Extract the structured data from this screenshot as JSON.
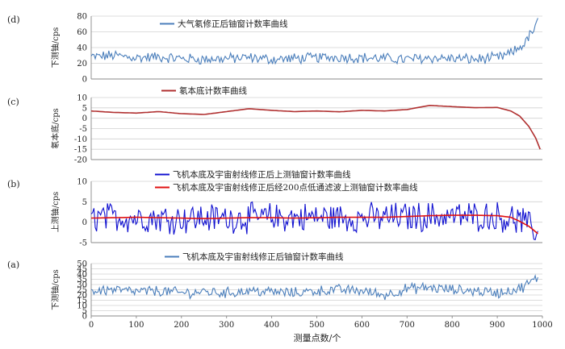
{
  "chart_data": [
    {
      "id": "d",
      "type": "line",
      "panel_label": "(d)",
      "ylabel": "下测铀/cps",
      "ylim": [
        0,
        80
      ],
      "yticks": [
        "0",
        "20",
        "40",
        "60",
        "80"
      ],
      "xlim": [
        0,
        1000
      ],
      "grid": true,
      "legend_position": "top-center",
      "series": [
        {
          "name": "大气氡修正后铀窗计数率曲线",
          "color": "#4a7ebb",
          "x": [
            0,
            50,
            100,
            150,
            200,
            250,
            300,
            350,
            400,
            450,
            500,
            550,
            600,
            650,
            700,
            750,
            800,
            850,
            900,
            920,
            940,
            960,
            980,
            990
          ],
          "values": [
            28,
            30,
            27,
            28,
            26,
            25,
            26,
            27,
            25,
            26,
            27,
            28,
            27,
            26,
            25,
            27,
            26,
            25,
            27,
            30,
            36,
            45,
            62,
            72
          ]
        }
      ]
    },
    {
      "id": "c",
      "type": "line",
      "panel_label": "(c)",
      "ylabel": "氡本底/cps",
      "ylim": [
        -20,
        10
      ],
      "yticks": [
        "-20",
        "-15",
        "-10",
        "-5",
        "0",
        "5",
        "10"
      ],
      "xlim": [
        0,
        1000
      ],
      "grid": true,
      "legend_position": "top-center",
      "series": [
        {
          "name": "氡本底计数率曲线",
          "color": "#b03030",
          "x": [
            0,
            50,
            100,
            150,
            200,
            250,
            300,
            350,
            400,
            450,
            500,
            550,
            600,
            650,
            700,
            750,
            800,
            850,
            900,
            930,
            950,
            970,
            985,
            995
          ],
          "values": [
            3.5,
            2.8,
            2.5,
            3.2,
            2.2,
            1.8,
            3.2,
            4.6,
            3.8,
            3.2,
            3.5,
            3.1,
            3.8,
            3.5,
            4.2,
            6.2,
            5.6,
            5.1,
            5.2,
            3.5,
            1,
            -4,
            -9.5,
            -15
          ]
        }
      ]
    },
    {
      "id": "b",
      "type": "line",
      "panel_label": "(b)",
      "ylabel": "上测铀/cps",
      "ylim": [
        -5,
        10
      ],
      "yticks": [
        "-5",
        "0",
        "5",
        "10"
      ],
      "xlim": [
        0,
        1000
      ],
      "grid": true,
      "legend_position": "top-center",
      "series": [
        {
          "name": "飞机本底及宇宙射线修正后上测铀窗计数率曲线",
          "color": "#1010d0",
          "x": [
            0,
            100,
            200,
            300,
            400,
            500,
            600,
            700,
            800,
            900,
            950,
            990
          ],
          "values": [
            1.2,
            1.1,
            0.9,
            1.0,
            1.1,
            1.2,
            1.0,
            1.3,
            1.5,
            1.4,
            0.5,
            -2.5
          ]
        },
        {
          "name": "飞机本底及宇宙射线修正后经200点低通滤波上测铀窗计数率曲线",
          "color": "#e01010",
          "x": [
            0,
            50,
            100,
            150,
            200,
            250,
            300,
            350,
            400,
            450,
            500,
            550,
            600,
            650,
            700,
            750,
            800,
            850,
            900,
            930,
            950,
            970,
            990
          ],
          "values": [
            1.0,
            1.1,
            1.2,
            1.1,
            1.0,
            0.9,
            1.0,
            1.1,
            1.1,
            1.0,
            1.1,
            1.2,
            1.2,
            1.2,
            1.4,
            1.6,
            1.7,
            1.7,
            1.6,
            1.2,
            0.2,
            -1.0,
            -2.8
          ]
        }
      ]
    },
    {
      "id": "a",
      "type": "line",
      "panel_label": "(a)",
      "ylabel": "下测铀/cps",
      "ylim": [
        0,
        50
      ],
      "yticks": [
        "0",
        "5",
        "10",
        "15",
        "20",
        "25",
        "30",
        "35",
        "40",
        "45",
        "50"
      ],
      "xlim": [
        0,
        1000
      ],
      "xticks": [
        "0",
        "100",
        "200",
        "300",
        "400",
        "500",
        "600",
        "700",
        "800",
        "900",
        "1000"
      ],
      "xlabel": "测量点数/个",
      "grid": true,
      "legend_position": "top-center",
      "series": [
        {
          "name": "飞机本底及宇宙射线修正后铀窗计数率曲线",
          "color": "#4a7ebb",
          "x": [
            0,
            50,
            100,
            150,
            200,
            250,
            300,
            350,
            400,
            450,
            500,
            550,
            600,
            650,
            700,
            750,
            800,
            850,
            900,
            950,
            990
          ],
          "values": [
            24,
            25,
            23,
            24,
            22,
            23,
            22,
            24,
            23,
            22,
            24,
            25,
            24,
            20,
            26,
            27,
            25,
            24,
            22,
            26,
            36
          ]
        }
      ]
    }
  ]
}
